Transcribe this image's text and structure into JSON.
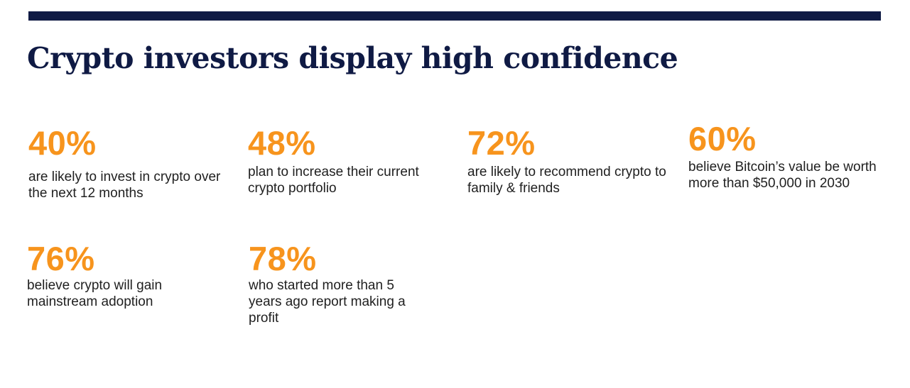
{
  "colors": {
    "accent_bar": "#0f1a44",
    "headline": "#0f1a44",
    "stat_value": "#f7941d",
    "body_text": "#1f1f1f"
  },
  "header": {
    "title": "Crypto investors display high confidence"
  },
  "stats": [
    {
      "value": "40%",
      "description": "are likely to invest in crypto over the next 12 months"
    },
    {
      "value": "48%",
      "description": "plan to increase their current crypto portfolio"
    },
    {
      "value": "72%",
      "description": "are likely to recommend crypto to family & friends"
    },
    {
      "value": "60%",
      "description": "believe Bitcoin’s value be worth more than $50,000 in 2030"
    },
    {
      "value": "76%",
      "description": "believe crypto will gain mainstream adoption"
    },
    {
      "value": "78%",
      "description": "who started more than 5 years ago report making a profit"
    }
  ]
}
